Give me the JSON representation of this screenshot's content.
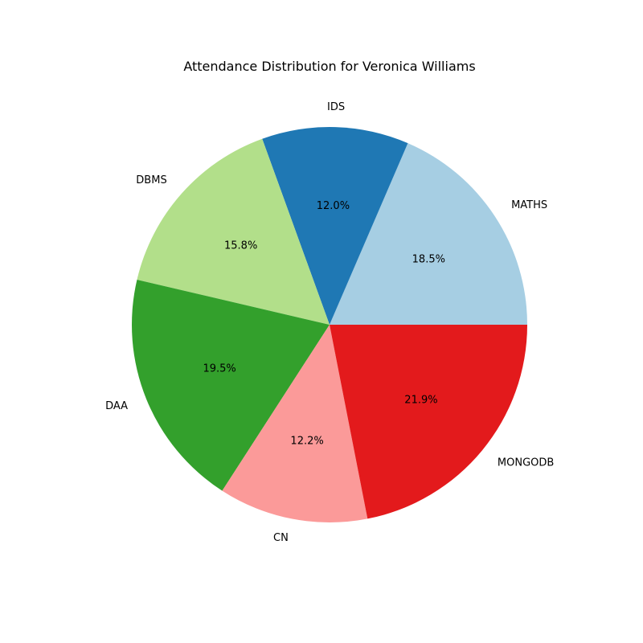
{
  "chart_data": {
    "type": "pie",
    "title": "Attendance Distribution for Veronica Williams",
    "slices": [
      {
        "label": "MATHS",
        "value": 18.5,
        "pct_text": "18.5%",
        "color": "#a6cee3"
      },
      {
        "label": "IDS",
        "value": 12.0,
        "pct_text": "12.0%",
        "color": "#1f78b4"
      },
      {
        "label": "DBMS",
        "value": 15.8,
        "pct_text": "15.8%",
        "color": "#b2df8a"
      },
      {
        "label": "DAA",
        "value": 19.5,
        "pct_text": "19.5%",
        "color": "#33a02c"
      },
      {
        "label": "CN",
        "value": 12.2,
        "pct_text": "12.2%",
        "color": "#fb9a99"
      },
      {
        "label": "MONGODB",
        "value": 21.9,
        "pct_text": "21.9%",
        "color": "#e31a1c"
      }
    ],
    "start_angle_deg": 0,
    "direction": "counterclockwise",
    "legend": "none"
  }
}
